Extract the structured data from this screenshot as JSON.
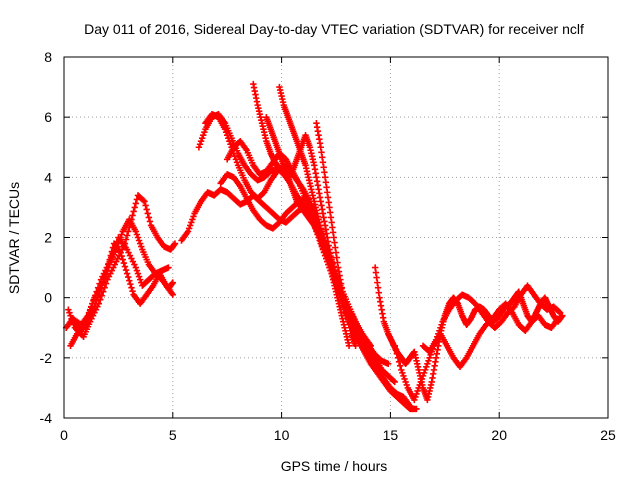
{
  "chart_data": {
    "type": "scatter",
    "title": "Day 011 of 2016, Sidereal Day-to-day VTEC variation (SDTVAR) for receiver nclf",
    "xlabel": "GPS time / hours",
    "ylabel": "SDTVAR / TECUs",
    "xlim": [
      0,
      25
    ],
    "ylim": [
      -4,
      8
    ],
    "xticks": [
      0,
      5,
      10,
      15,
      20,
      25
    ],
    "yticks": [
      -4,
      -2,
      0,
      2,
      4,
      6,
      8
    ],
    "xtick_labels": [
      "0",
      "5",
      "10",
      "15",
      "20",
      "25"
    ],
    "ytick_labels": [
      "-4",
      "-2",
      "0",
      "2",
      "4",
      "6",
      "8"
    ],
    "grid": true,
    "legend": "none",
    "marker": "plus",
    "color": "#ff0000",
    "series": [
      {
        "x": [
          0.1,
          0.4,
          0.8,
          1.1,
          1.4,
          1.8,
          2.1,
          2.4,
          2.7,
          3.0,
          3.3,
          3.6,
          3.9,
          4.2,
          4.5,
          4.8,
          5.0
        ],
        "y": [
          -1.0,
          -0.7,
          -0.9,
          -0.6,
          0.0,
          0.5,
          1.1,
          1.6,
          2.2,
          2.6,
          2.2,
          1.6,
          1.1,
          0.8,
          0.6,
          0.3,
          0.5
        ]
      },
      {
        "x": [
          0.2,
          0.5,
          0.9,
          1.2,
          1.6,
          2.0,
          2.4,
          2.8,
          3.1,
          3.4,
          3.7,
          4.0,
          4.3,
          4.6,
          4.9,
          5.1
        ],
        "y": [
          -0.4,
          -1.0,
          -1.3,
          -0.8,
          -0.2,
          0.6,
          1.2,
          1.8,
          2.6,
          3.4,
          3.2,
          2.4,
          2.0,
          1.7,
          1.6,
          1.8
        ]
      },
      {
        "x": [
          0.3,
          0.6,
          1.0,
          1.3,
          1.7,
          2.1,
          2.5,
          2.9,
          3.3,
          3.6,
          3.9,
          4.2,
          4.5,
          4.8
        ],
        "y": [
          -1.6,
          -1.2,
          -0.9,
          -0.2,
          0.6,
          1.2,
          2.0,
          1.6,
          1.0,
          0.4,
          0.6,
          0.8,
          0.9,
          1.0
        ]
      },
      {
        "x": [
          0.5,
          0.8,
          1.1,
          1.4,
          1.7,
          2.0,
          2.3,
          2.6,
          2.9,
          3.2,
          3.5,
          3.8,
          4.1,
          4.4,
          4.7,
          5.0
        ],
        "y": [
          -0.9,
          -1.1,
          -0.7,
          -0.3,
          0.3,
          1.0,
          1.8,
          1.5,
          0.8,
          0.1,
          -0.2,
          0.1,
          0.4,
          0.8,
          0.4,
          0.1
        ]
      },
      {
        "x": [
          5.4,
          5.7,
          6.0,
          6.3,
          6.6,
          6.9,
          7.2,
          7.5,
          7.8,
          8.1,
          8.4,
          8.7,
          9.0,
          9.3,
          9.6,
          9.9,
          10.2,
          10.5,
          10.8,
          11.1,
          11.4,
          11.7,
          12.0,
          12.3,
          12.6,
          12.9,
          13.2,
          13.5,
          13.8,
          14.1
        ],
        "y": [
          1.9,
          2.2,
          2.8,
          3.2,
          3.5,
          3.4,
          3.6,
          3.5,
          3.3,
          3.1,
          3.2,
          3.4,
          3.2,
          3.0,
          2.8,
          2.6,
          2.5,
          2.7,
          2.9,
          3.0,
          2.6,
          2.0,
          1.4,
          0.8,
          0.3,
          -0.2,
          -0.6,
          -1.0,
          -1.3,
          -1.6
        ]
      },
      {
        "x": [
          6.2,
          6.5,
          6.8,
          7.1,
          7.4,
          7.7,
          8.0,
          8.3,
          8.6,
          8.9,
          9.2,
          9.5,
          9.8,
          10.1,
          10.4,
          10.7,
          11.0,
          11.3,
          11.6,
          11.9,
          12.2,
          12.5,
          12.8,
          13.1,
          13.4,
          13.7,
          14.0,
          14.3,
          14.6,
          14.9
        ],
        "y": [
          5.0,
          5.6,
          6.0,
          6.1,
          5.8,
          5.3,
          4.8,
          4.4,
          4.1,
          3.9,
          4.0,
          4.2,
          4.3,
          4.1,
          3.8,
          3.4,
          3.1,
          2.9,
          2.4,
          1.8,
          1.2,
          0.6,
          0.1,
          -0.4,
          -0.8,
          -1.2,
          -1.6,
          -1.9,
          -2.1,
          -2.2
        ]
      },
      {
        "x": [
          6.5,
          6.8,
          7.1,
          7.4,
          7.7,
          8.0,
          8.3,
          8.6,
          8.9,
          9.2,
          9.5,
          9.8,
          10.1,
          10.4,
          10.7,
          11.0,
          11.3,
          11.6,
          11.9,
          12.2,
          12.5,
          12.8,
          13.1,
          13.4,
          13.7,
          14.0,
          14.3,
          14.6,
          14.9,
          15.2
        ],
        "y": [
          5.8,
          6.1,
          6.0,
          5.6,
          5.0,
          4.4,
          3.9,
          3.5,
          3.3,
          3.5,
          3.9,
          4.2,
          4.4,
          4.2,
          3.9,
          3.6,
          3.2,
          2.7,
          2.1,
          1.5,
          0.8,
          0.2,
          -0.3,
          -0.8,
          -1.2,
          -1.6,
          -2.0,
          -2.4,
          -2.6,
          -2.8
        ]
      },
      {
        "x": [
          7.2,
          7.5,
          7.8,
          8.1,
          8.4,
          8.7,
          9.0,
          9.3,
          9.6,
          9.9,
          10.2,
          10.5,
          10.8,
          11.1,
          11.4,
          11.7,
          12.0,
          12.3,
          12.6,
          12.9,
          13.2,
          13.5,
          13.8,
          14.1,
          14.4,
          14.7,
          15.0,
          15.3,
          15.6,
          15.9
        ],
        "y": [
          3.8,
          4.1,
          4.0,
          3.7,
          3.3,
          2.9,
          2.6,
          2.4,
          2.3,
          2.5,
          2.8,
          3.0,
          3.2,
          3.3,
          3.0,
          2.4,
          1.8,
          1.0,
          0.3,
          -0.3,
          -0.7,
          -1.2,
          -1.7,
          -2.1,
          -2.4,
          -2.7,
          -3.0,
          -3.2,
          -3.3,
          -3.6
        ]
      },
      {
        "x": [
          7.5,
          7.8,
          8.1,
          8.4,
          8.7,
          9.0,
          9.3,
          9.6,
          9.9,
          10.2,
          10.5,
          10.8,
          11.1,
          11.4,
          11.7,
          12.0,
          12.3,
          12.6,
          12.9,
          13.2,
          13.5,
          13.8,
          14.1,
          14.4,
          14.7,
          15.0,
          15.3,
          15.6,
          15.9,
          16.2
        ],
        "y": [
          4.6,
          5.0,
          5.2,
          4.9,
          4.4,
          4.1,
          4.2,
          4.5,
          4.8,
          4.6,
          4.2,
          3.8,
          3.3,
          2.7,
          2.1,
          1.4,
          0.8,
          0.2,
          -0.4,
          -0.9,
          -1.4,
          -1.8,
          -2.2,
          -2.5,
          -2.8,
          -3.1,
          -3.3,
          -3.5,
          -3.7,
          -3.7
        ]
      },
      {
        "x": [
          8.7,
          8.9,
          9.1,
          9.3,
          9.5,
          9.7,
          9.9,
          10.1,
          10.3,
          10.5,
          10.7,
          10.9,
          11.1,
          11.3,
          11.5,
          11.7,
          11.9,
          12.1,
          12.3,
          12.5,
          12.7,
          12.9,
          13.1,
          13.3,
          13.5,
          13.7,
          13.9,
          14.1,
          14.3,
          14.5
        ],
        "y": [
          7.1,
          6.4,
          5.8,
          5.2,
          4.8,
          4.5,
          4.3,
          4.1,
          4.0,
          4.2,
          4.6,
          5.0,
          5.4,
          5.0,
          4.4,
          3.6,
          2.8,
          2.0,
          1.2,
          0.6,
          0.0,
          -0.4,
          -0.8,
          -1.1,
          -1.4,
          -1.6,
          -1.8,
          -2.0,
          -2.2,
          -2.4
        ]
      },
      {
        "x": [
          9.3,
          9.5,
          9.7,
          9.9,
          10.1,
          10.3,
          10.5,
          10.7,
          10.9,
          11.1,
          11.3,
          11.5,
          11.7,
          11.9,
          12.1,
          12.3,
          12.5,
          12.7,
          12.9,
          13.1,
          13.3,
          13.5,
          13.7,
          13.9
        ],
        "y": [
          6.0,
          5.6,
          5.2,
          4.8,
          4.4,
          4.0,
          3.6,
          3.2,
          3.0,
          2.8,
          2.6,
          2.4,
          2.1,
          1.8,
          1.4,
          1.0,
          0.6,
          0.2,
          -0.2,
          -0.5,
          -0.8,
          -1.1,
          -1.4,
          -1.6
        ]
      },
      {
        "x": [
          9.9,
          10.1,
          10.3,
          10.5,
          10.7,
          10.9,
          11.1,
          11.3,
          11.5,
          11.7,
          11.9,
          12.1,
          12.3,
          12.5,
          12.7,
          12.9,
          13.1
        ],
        "y": [
          7.0,
          6.4,
          6.0,
          5.6,
          5.2,
          4.8,
          4.4,
          3.8,
          3.2,
          2.6,
          2.0,
          1.4,
          0.8,
          0.2,
          -0.4,
          -1.0,
          -1.6
        ]
      },
      {
        "x": [
          11.6,
          11.8,
          12.0,
          12.2,
          12.4,
          12.6,
          12.8,
          13.0,
          13.2,
          13.4
        ],
        "y": [
          5.8,
          5.0,
          4.0,
          3.0,
          2.0,
          1.0,
          0.2,
          -0.6,
          -1.2,
          -1.6
        ]
      },
      {
        "x": [
          14.3,
          14.5,
          14.7,
          14.9,
          15.1,
          15.3,
          15.5,
          15.7,
          15.9,
          16.1,
          16.3,
          16.5,
          16.7,
          16.9,
          17.1,
          17.3,
          17.5,
          17.7,
          17.9,
          18.1,
          18.3,
          18.5,
          18.7,
          18.9,
          19.1,
          19.3,
          19.5,
          19.7,
          19.9,
          20.1,
          20.3,
          20.5,
          20.7,
          20.9,
          21.1,
          21.3,
          21.5,
          21.7,
          21.9,
          22.1,
          22.3,
          22.5,
          22.7,
          22.9
        ],
        "y": [
          1.0,
          0.0,
          -0.8,
          -1.2,
          -1.5,
          -1.8,
          -2.0,
          -2.2,
          -2.0,
          -1.8,
          -2.4,
          -3.0,
          -3.4,
          -2.8,
          -2.0,
          -1.2,
          -0.6,
          -0.2,
          0.0,
          -0.2,
          -0.6,
          -0.9,
          -0.7,
          -0.4,
          -0.3,
          -0.4,
          -0.6,
          -0.8,
          -0.7,
          -0.5,
          -0.3,
          -0.2,
          0.0,
          0.2,
          -0.2,
          -0.6,
          -0.8,
          -0.5,
          -0.2,
          0.0,
          -0.3,
          -0.6,
          -0.8,
          -0.6
        ]
      },
      {
        "x": [
          15.2,
          15.5,
          15.8,
          16.1,
          16.4,
          16.7,
          17.0,
          17.3,
          17.6,
          17.9,
          18.2,
          18.5,
          18.8,
          19.1,
          19.4,
          19.7,
          20.0,
          20.3,
          20.6,
          20.9,
          21.2,
          21.5,
          21.8,
          22.1,
          22.4,
          22.7
        ],
        "y": [
          -1.6,
          -2.4,
          -3.0,
          -3.4,
          -2.8,
          -2.2,
          -1.6,
          -1.2,
          -1.6,
          -2.0,
          -2.3,
          -2.0,
          -1.6,
          -1.2,
          -0.9,
          -0.7,
          -0.4,
          -0.2,
          -0.5,
          -0.9,
          -1.1,
          -0.8,
          -0.6,
          -0.9,
          -1.0,
          -0.7
        ]
      },
      {
        "x": [
          16.5,
          16.8,
          17.1,
          17.4,
          17.7,
          18.0,
          18.3,
          18.6,
          18.9,
          19.2,
          19.5,
          19.8,
          20.1,
          20.4,
          20.7,
          21.0,
          21.3,
          21.6,
          21.9,
          22.2,
          22.5,
          22.8
        ],
        "y": [
          -1.6,
          -1.8,
          -1.4,
          -0.8,
          -0.4,
          -0.1,
          0.1,
          0.0,
          -0.2,
          -0.5,
          -0.8,
          -1.0,
          -0.8,
          -0.5,
          -0.3,
          0.1,
          0.4,
          0.1,
          -0.2,
          -0.4,
          -0.3,
          -0.5
        ]
      }
    ]
  }
}
